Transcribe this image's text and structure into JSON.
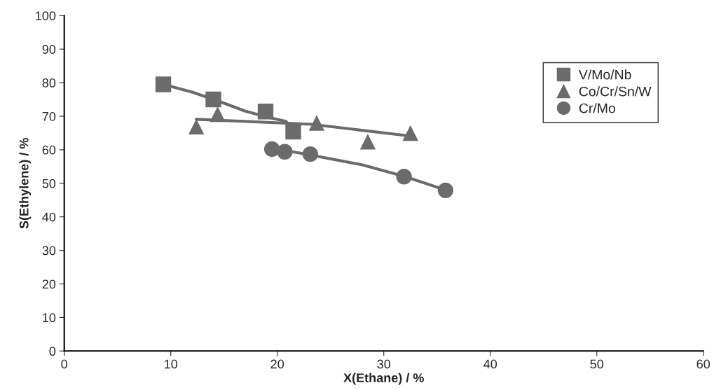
{
  "chart_data": {
    "type": "scatter",
    "xlabel": "X(Ethane) / %",
    "ylabel": "S(Ethylene) / %",
    "xlim": [
      0,
      60
    ],
    "xticks": [
      0,
      10,
      20,
      30,
      40,
      50,
      60
    ],
    "ylim": [
      0,
      100
    ],
    "yticks": [
      0,
      10,
      20,
      30,
      40,
      50,
      60,
      70,
      80,
      90,
      100
    ],
    "grid": false,
    "legend": "top right",
    "series": [
      {
        "name": "V/Mo/Nb",
        "marker": "square",
        "color": "#6b6b6b",
        "x": [
          9.3,
          14.0,
          18.9,
          21.5
        ],
        "values": [
          79.5,
          75.0,
          71.4,
          65.4
        ]
      },
      {
        "name": "Co/Cr/Sn/W",
        "marker": "triangle",
        "color": "#6b6b6b",
        "x": [
          12.4,
          14.4,
          23.7,
          28.5,
          32.5
        ],
        "values": [
          66.9,
          70.6,
          68.0,
          62.4,
          65.0
        ]
      },
      {
        "name": "Cr/Mo",
        "marker": "circle",
        "color": "#6b6b6b",
        "x": [
          19.5,
          20.7,
          23.1,
          31.9,
          35.8
        ],
        "values": [
          60.2,
          59.4,
          58.7,
          52.0,
          47.9
        ]
      },
      {
        "type": "line",
        "marker": "none",
        "color": "#6b6b6b",
        "x": [
          9.3,
          12.0,
          14.5,
          17.0,
          19.0,
          20.8,
          21.5
        ],
        "values": [
          79.5,
          77.2,
          74.5,
          71.5,
          69.8,
          68.5,
          66.0
        ]
      },
      {
        "type": "line",
        "marker": "none",
        "color": "#6b6b6b",
        "x": [
          12.4,
          23.2,
          32.5
        ],
        "values": [
          69.1,
          67.6,
          64.1
        ]
      },
      {
        "type": "line",
        "marker": "none",
        "color": "#6b6b6b",
        "x": [
          19.5,
          23.0,
          28.0,
          32.0,
          35.8
        ],
        "values": [
          60.5,
          58.5,
          55.5,
          52.0,
          48.0
        ]
      }
    ]
  }
}
